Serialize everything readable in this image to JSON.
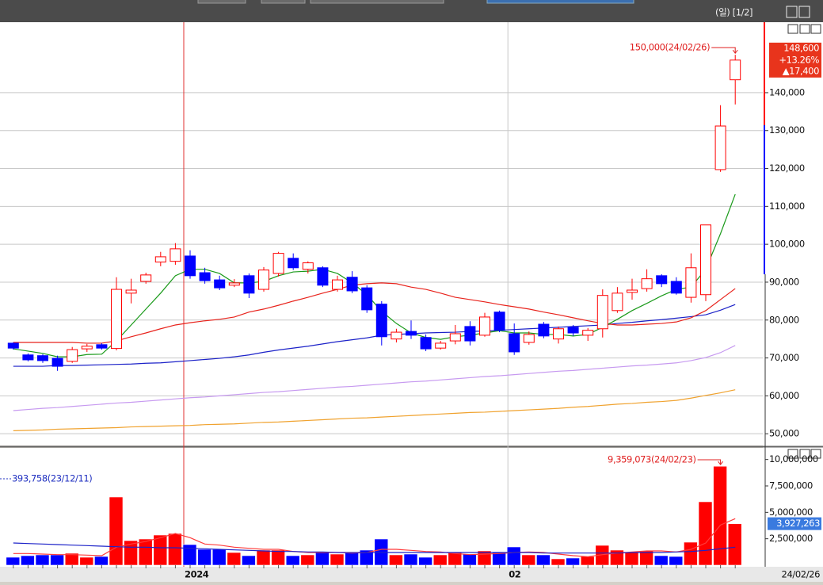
{
  "window_label": "(일) [1/2]",
  "chart_data": {
    "type": "candlestick",
    "categories": [
      null,
      null,
      null,
      null,
      null,
      null,
      null,
      null,
      null,
      null,
      null,
      null,
      "2024",
      null,
      null,
      null,
      null,
      null,
      null,
      null,
      null,
      null,
      null,
      null,
      null,
      null,
      null,
      null,
      null,
      null,
      null,
      null,
      null,
      null,
      "02",
      null,
      null,
      null,
      null,
      null,
      null,
      null,
      null,
      null,
      null,
      null,
      null,
      null,
      null,
      null
    ],
    "open": [
      73900,
      70800,
      70600,
      69900,
      69100,
      72400,
      73500,
      72500,
      87100,
      90200,
      95300,
      95500,
      96900,
      92500,
      90600,
      89200,
      91700,
      88100,
      92300,
      96300,
      93400,
      93800,
      88100,
      91300,
      88500,
      84200,
      75000,
      77000,
      75400,
      72600,
      74500,
      78300,
      76000,
      82100,
      76400,
      74100,
      78900,
      75000,
      78100,
      76000,
      77700,
      82500,
      87300,
      88300,
      91700,
      90200,
      86000,
      86700,
      119700,
      143400
    ],
    "high": [
      74100,
      71200,
      71000,
      70600,
      72900,
      73700,
      73900,
      91300,
      90900,
      92500,
      98000,
      100300,
      98400,
      93800,
      91700,
      90800,
      92300,
      94000,
      98000,
      97600,
      95500,
      94200,
      91700,
      92900,
      89200,
      85000,
      77700,
      79900,
      76200,
      74500,
      78700,
      79700,
      81900,
      82500,
      79100,
      77000,
      79500,
      78300,
      78700,
      77900,
      88100,
      88700,
      90900,
      93400,
      92100,
      91300,
      97600,
      105100,
      136700,
      150000
    ],
    "low": [
      72200,
      69100,
      68700,
      66600,
      68700,
      71600,
      72200,
      72000,
      84400,
      89600,
      94200,
      94600,
      90900,
      89600,
      87900,
      88700,
      85800,
      87500,
      91500,
      93200,
      92300,
      88700,
      87500,
      87100,
      81900,
      73300,
      74100,
      75000,
      71800,
      72200,
      73600,
      73300,
      75600,
      76800,
      70800,
      73500,
      75200,
      73800,
      75800,
      74500,
      75400,
      81900,
      85400,
      87500,
      88700,
      86700,
      84600,
      85000,
      119100,
      136900
    ],
    "close": [
      72600,
      69500,
      69300,
      67800,
      72200,
      73100,
      72600,
      88100,
      87900,
      91900,
      96700,
      98800,
      91700,
      90400,
      88500,
      89800,
      87100,
      93200,
      97600,
      93800,
      95100,
      89200,
      90600,
      87700,
      82700,
      75600,
      76800,
      76000,
      72400,
      73900,
      76400,
      74500,
      80800,
      77300,
      71600,
      76200,
      75800,
      77700,
      76600,
      77300,
      86500,
      87100,
      87900,
      90900,
      89600,
      87100,
      93800,
      105100,
      131200,
      148600
    ],
    "up_color": "#ff0000",
    "down_color": "#0000ff",
    "ylim": [
      46900,
      158600
    ],
    "yticks": [
      {
        "value": 50000,
        "label": "50,000"
      },
      {
        "value": 60000,
        "label": "60,000"
      },
      {
        "value": 70000,
        "label": "70,000"
      },
      {
        "value": 80000,
        "label": "80,000"
      },
      {
        "value": 90000,
        "label": "90,000"
      },
      {
        "value": 100000,
        "label": "100,000"
      },
      {
        "value": 110000,
        "label": "110,000"
      },
      {
        "value": 120000,
        "label": "120,000"
      },
      {
        "value": 130000,
        "label": "130,000"
      },
      {
        "value": 140000,
        "label": "140,000"
      }
    ],
    "grid": true,
    "moving_averages": [
      {
        "color": "#1a9a1a",
        "values": [
          72400,
          71800,
          71200,
          70300,
          70300,
          70900,
          71000,
          74500,
          78700,
          82900,
          87100,
          91700,
          93400,
          93400,
          92300,
          89800,
          89800,
          90200,
          91700,
          92700,
          92900,
          93400,
          92300,
          89800,
          86700,
          82300,
          79100,
          76600,
          75400,
          74900,
          75600,
          76000,
          76600,
          77200,
          76600,
          76600,
          76200,
          76200,
          75800,
          76200,
          78100,
          80200,
          82500,
          84400,
          86400,
          88100,
          88700,
          93400,
          102800,
          113200
        ]
      },
      {
        "color": "#e8231c",
        "values": [
          74100,
          74100,
          74100,
          74100,
          74100,
          73900,
          73900,
          74500,
          75600,
          76600,
          77700,
          78700,
          79300,
          79800,
          80200,
          80800,
          82100,
          82900,
          83900,
          85000,
          86000,
          87100,
          88100,
          89200,
          89600,
          89800,
          89600,
          88700,
          88100,
          87100,
          86000,
          85400,
          84800,
          84100,
          83500,
          82900,
          82100,
          81400,
          80600,
          79800,
          79100,
          78700,
          78700,
          78900,
          79100,
          79500,
          80600,
          82500,
          85400,
          88300
        ]
      },
      {
        "color": "#1c22c8",
        "values": [
          67800,
          67800,
          67800,
          68000,
          68000,
          68100,
          68200,
          68300,
          68400,
          68600,
          68700,
          69000,
          69300,
          69600,
          69900,
          70300,
          70800,
          71500,
          72100,
          72600,
          73100,
          73700,
          74300,
          74800,
          75300,
          76000,
          76200,
          76400,
          76600,
          76700,
          76800,
          77000,
          77100,
          77300,
          77500,
          77700,
          77900,
          78100,
          78300,
          78500,
          78700,
          79100,
          79400,
          79800,
          80100,
          80500,
          80900,
          81400,
          82600,
          84100
        ]
      },
      {
        "color": "#c79af0",
        "values": [
          56100,
          56400,
          56700,
          56900,
          57200,
          57500,
          57800,
          58100,
          58300,
          58600,
          58900,
          59200,
          59500,
          59700,
          60000,
          60300,
          60600,
          60900,
          61100,
          61400,
          61700,
          62000,
          62300,
          62500,
          62800,
          63100,
          63400,
          63700,
          63900,
          64200,
          64500,
          64800,
          65100,
          65300,
          65600,
          65900,
          66200,
          66500,
          66700,
          67000,
          67300,
          67600,
          67900,
          68100,
          68400,
          68700,
          69300,
          70100,
          71400,
          73300
        ]
      },
      {
        "color": "#f0a22e",
        "values": [
          50800,
          50900,
          51000,
          51200,
          51300,
          51400,
          51500,
          51600,
          51800,
          51900,
          52000,
          52100,
          52200,
          52400,
          52500,
          52600,
          52800,
          53000,
          53100,
          53300,
          53500,
          53700,
          53900,
          54100,
          54200,
          54400,
          54600,
          54800,
          55000,
          55200,
          55400,
          55600,
          55700,
          55900,
          56100,
          56300,
          56500,
          56700,
          57000,
          57200,
          57500,
          57800,
          58000,
          58300,
          58500,
          58800,
          59400,
          60100,
          60800,
          61600
        ]
      }
    ],
    "last_price": {
      "value": 148600,
      "label": "148,600"
    },
    "change_pct": {
      "value": 13.26,
      "label": "+13.26%"
    },
    "change": {
      "value": 17400,
      "label": "▲17,400"
    },
    "max_price_note": "150,000(24/02/26)",
    "date_label": "24/02/26",
    "volume": {
      "values": [
        750000,
        900000,
        975000,
        975000,
        1125000,
        750000,
        825000,
        6450000,
        2325000,
        2475000,
        2850000,
        3000000,
        1950000,
        1500000,
        1500000,
        1200000,
        900000,
        1425000,
        1425000,
        900000,
        975000,
        1275000,
        1050000,
        1200000,
        1425000,
        2475000,
        975000,
        1050000,
        750000,
        975000,
        1200000,
        1050000,
        1350000,
        1200000,
        1725000,
        975000,
        975000,
        600000,
        675000,
        825000,
        1875000,
        1425000,
        1200000,
        1350000,
        900000,
        825000,
        2175000,
        6000000,
        9359073,
        3927263
      ],
      "ylim": [
        0,
        11100000
      ],
      "yticks": [
        {
          "value": 2500000,
          "label": "2,500,000"
        },
        {
          "value": 5000000,
          "label": "5,000,000"
        },
        {
          "value": 7500000,
          "label": "7,500,000"
        },
        {
          "value": 10000000,
          "label": "10,000,000"
        }
      ],
      "current": {
        "value": 3927263,
        "label": "3,927,263"
      },
      "max_note": "9,359,073(24/02/23)",
      "min_note": "393,758(23/12/11)",
      "moving_averages": [
        {
          "color": "#ff3b3b",
          "values": [
            1100000,
            1100000,
            1050000,
            1000000,
            1000000,
            950000,
            900000,
            1700000,
            2000000,
            2250000,
            2600000,
            3000000,
            2600000,
            2000000,
            1900000,
            1700000,
            1600000,
            1500000,
            1500000,
            1300000,
            1200000,
            1200000,
            1200000,
            1150000,
            1200000,
            1500000,
            1500000,
            1400000,
            1300000,
            1250000,
            1100000,
            1000000,
            1050000,
            1100000,
            1200000,
            1250000,
            1200000,
            1050000,
            900000,
            800000,
            1000000,
            1150000,
            1250000,
            1350000,
            1350000,
            1250000,
            1500000,
            2100000,
            3800000,
            4400000
          ]
        },
        {
          "color": "#1c22c8",
          "values": [
            2100000,
            2050000,
            2000000,
            1950000,
            1900000,
            1850000,
            1800000,
            1750000,
            1700000,
            1700000,
            1650000,
            1650000,
            1600000,
            1550000,
            1500000,
            1450000,
            1400000,
            1350000,
            1300000,
            1300000,
            1250000,
            1250000,
            1200000,
            1200000,
            1200000,
            1200000,
            1200000,
            1200000,
            1200000,
            1200000,
            1200000,
            1200000,
            1200000,
            1200000,
            1200000,
            1200000,
            1150000,
            1150000,
            1150000,
            1150000,
            1150000,
            1150000,
            1200000,
            1200000,
            1200000,
            1250000,
            1300000,
            1400000,
            1550000,
            1700000
          ]
        }
      ]
    }
  }
}
